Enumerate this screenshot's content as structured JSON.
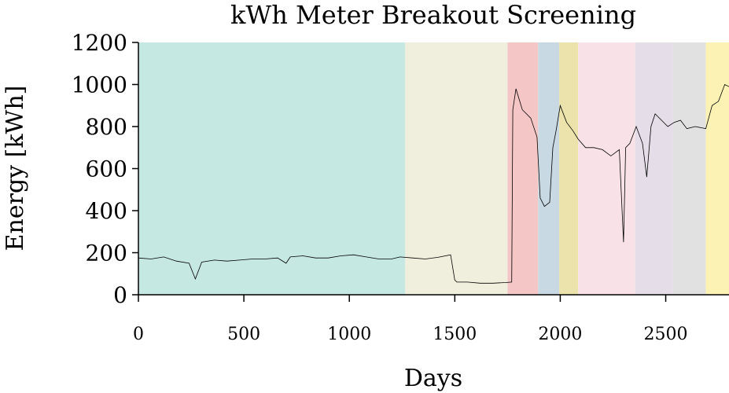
{
  "chart_data": {
    "type": "line",
    "title": "kWh Meter Breakout Screening",
    "xlabel": "Days",
    "ylabel": "Energy [kWh]",
    "xlim": [
      0,
      2800
    ],
    "ylim": [
      0,
      1200
    ],
    "xticks": [
      0,
      500,
      1000,
      1500,
      2000,
      2500
    ],
    "yticks": [
      0,
      200,
      400,
      600,
      800,
      1000,
      1200
    ],
    "grid": false,
    "legend": "none",
    "regions": [
      {
        "start": 0,
        "end": 1265,
        "color": "#c5e8e2"
      },
      {
        "start": 1265,
        "end": 1750,
        "color": "#f0eedc"
      },
      {
        "start": 1750,
        "end": 1895,
        "color": "#f5c6c6"
      },
      {
        "start": 1895,
        "end": 1995,
        "color": "#c9d9e3"
      },
      {
        "start": 1995,
        "end": 2085,
        "color": "#ebe3ab"
      },
      {
        "start": 2085,
        "end": 2355,
        "color": "#f8e2e8"
      },
      {
        "start": 2355,
        "end": 2535,
        "color": "#e5dde7"
      },
      {
        "start": 2535,
        "end": 2690,
        "color": "#e1e1e1"
      },
      {
        "start": 2690,
        "end": 2800,
        "color": "#fbf2b4"
      }
    ],
    "series": [
      {
        "color": "#000000",
        "x": [
          0,
          60,
          120,
          180,
          240,
          270,
          300,
          360,
          420,
          480,
          540,
          600,
          660,
          700,
          720,
          780,
          840,
          900,
          960,
          1020,
          1080,
          1140,
          1200,
          1240,
          1300,
          1360,
          1420,
          1480,
          1500,
          1510,
          1560,
          1620,
          1680,
          1740,
          1770,
          1775,
          1790,
          1820,
          1860,
          1890,
          1905,
          1925,
          1950,
          1965,
          1980,
          2000,
          2030,
          2060,
          2085,
          2120,
          2160,
          2200,
          2240,
          2280,
          2300,
          2310,
          2330,
          2360,
          2390,
          2410,
          2430,
          2450,
          2480,
          2510,
          2540,
          2570,
          2600,
          2640,
          2690,
          2720,
          2750,
          2780,
          2800
        ],
        "y": [
          175,
          170,
          180,
          160,
          150,
          75,
          155,
          165,
          160,
          165,
          170,
          170,
          175,
          150,
          180,
          185,
          175,
          175,
          185,
          190,
          180,
          170,
          170,
          180,
          175,
          170,
          178,
          190,
          70,
          60,
          60,
          55,
          55,
          58,
          60,
          880,
          980,
          880,
          840,
          750,
          460,
          420,
          440,
          700,
          780,
          900,
          820,
          780,
          740,
          700,
          700,
          690,
          660,
          690,
          250,
          700,
          720,
          800,
          720,
          560,
          800,
          860,
          830,
          800,
          820,
          830,
          790,
          800,
          790,
          900,
          920,
          1000,
          990
        ]
      }
    ]
  }
}
